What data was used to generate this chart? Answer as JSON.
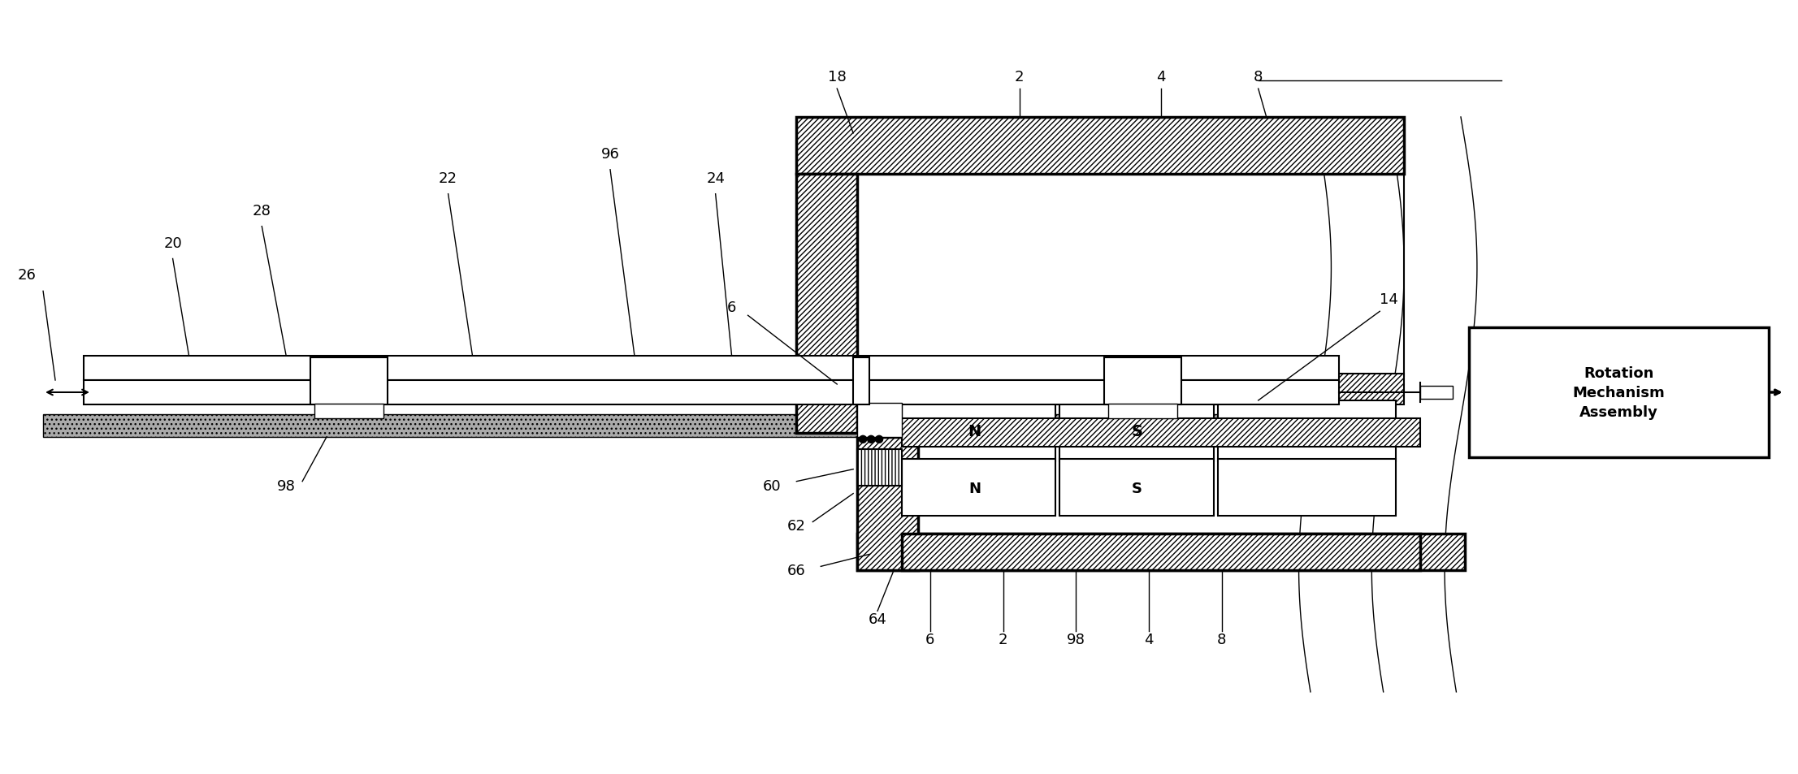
{
  "bg_color": "#ffffff",
  "line_color": "#000000",
  "hatch_color": "#000000",
  "title": "",
  "figsize": [
    22.13,
    9.54
  ],
  "dpi": 100,
  "labels": {
    "2_top": "2",
    "4_top": "4",
    "8_top": "8",
    "18": "18",
    "6_upper": "6",
    "14": "14",
    "26": "26",
    "20": "20",
    "28": "28",
    "22": "22",
    "96": "96",
    "24": "24",
    "60": "60",
    "62": "62",
    "66": "66",
    "64": "64",
    "98_lower": "98",
    "6_lower": "6",
    "2_lower": "2",
    "98_lower2": "98",
    "4_lower": "4",
    "8_lower": "8",
    "N_upper": "N",
    "S_upper": "S",
    "N_lower": "N",
    "S_lower": "S",
    "rotation_box": "Rotation\nMechanism\nAssembly"
  }
}
